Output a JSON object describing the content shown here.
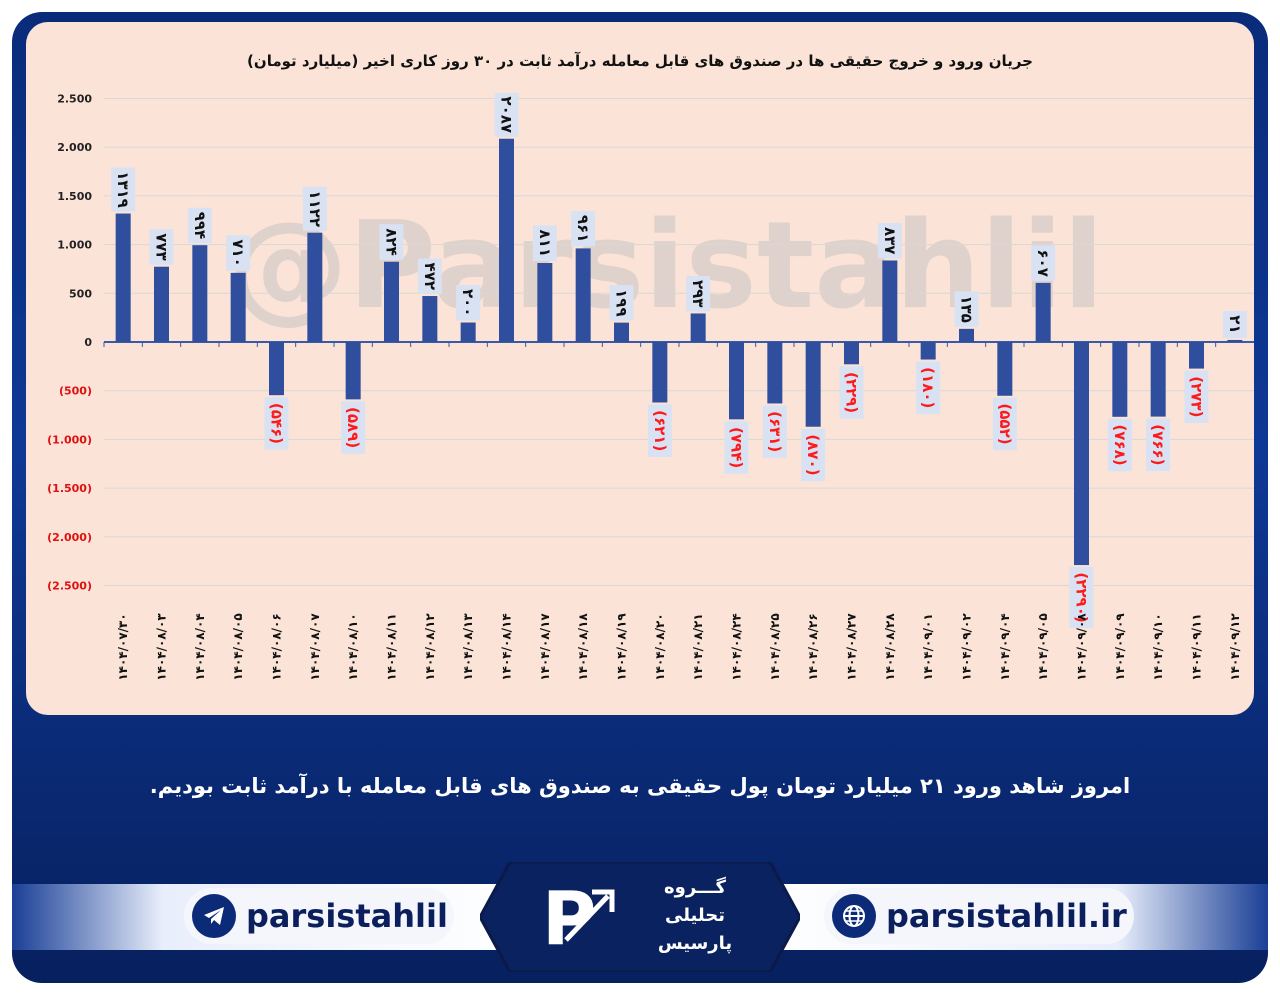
{
  "chart_data": {
    "type": "bar",
    "title": "جریان ورود و خروج حقیقی ها در صندوق های قابل معامله درآمد ثابت در ۳۰ روز کاری اخیر (میلیارد تومان)",
    "categories": [
      "۱۴۰۴/۰۷/۳۰",
      "۱۴۰۴/۰۸/۰۳",
      "۱۴۰۴/۰۸/۰۴",
      "۱۴۰۴/۰۸/۰۵",
      "۱۴۰۴/۰۸/۰۶",
      "۱۴۰۴/۰۸/۰۷",
      "۱۴۰۴/۰۸/۱۰",
      "۱۴۰۴/۰۸/۱۱",
      "۱۴۰۴/۰۸/۱۲",
      "۱۴۰۴/۰۸/۱۳",
      "۱۴۰۴/۰۸/۱۴",
      "۱۴۰۴/۰۸/۱۷",
      "۱۴۰۴/۰۸/۱۸",
      "۱۴۰۴/۰۸/۱۹",
      "۱۴۰۴/۰۸/۲۰",
      "۱۴۰۴/۰۸/۲۱",
      "۱۴۰۴/۰۸/۲۴",
      "۱۴۰۴/۰۸/۲۵",
      "۱۴۰۴/۰۸/۲۶",
      "۱۴۰۴/۰۸/۲۷",
      "۱۴۰۴/۰۸/۲۸",
      "۱۴۰۴/۰۹/۰۱",
      "۱۴۰۴/۰۹/۰۲",
      "۱۴۰۴/۰۹/۰۴",
      "۱۴۰۴/۰۹/۰۵",
      "۱۴۰۴/۰۹/۰۸",
      "۱۴۰۴/۰۹/۰۹",
      "۱۴۰۴/۰۹/۱۰",
      "۱۴۰۴/۰۹/۱۱",
      "۱۴۰۴/۰۹/۱۲"
    ],
    "values": [
      1319,
      773,
      994,
      710,
      -546,
      1122,
      -589,
      824,
      472,
      200,
      2087,
      811,
      961,
      199,
      -621,
      293,
      -794,
      -631,
      -870,
      -229,
      837,
      -180,
      135,
      -552,
      607,
      -2290,
      -768,
      -766,
      -273,
      21
    ],
    "data_labels": [
      "۱۳۱۹",
      "۷۷۳",
      "۹۹۴",
      "۷۱۰",
      "(۵۴۶)",
      "۱۱۲۲",
      "(۵۸۹)",
      "۸۲۴",
      "۴۷۲",
      "۲۰۰",
      "۲۰۸۷",
      "۸۱۱",
      "۹۶۱",
      "۱۹۹",
      "(۶۲۱)",
      "۲۹۳",
      "(۷۹۴)",
      "(۶۳۱)",
      "(۸۷۰)",
      "(۲۲۹)",
      "۸۳۷",
      "(۱۸۰)",
      "۱۳۵",
      "(۵۵۲)",
      "۶۰۷",
      "(۲۲۹۰)",
      "(۷۶۸)",
      "(۷۶۶)",
      "(۲۷۳)",
      "۲۱"
    ],
    "ylim": [
      -2500,
      2500
    ],
    "y_ticks": [
      2500,
      2000,
      1500,
      1000,
      500,
      0,
      -500,
      -1000,
      -1500,
      -2000,
      -2500
    ],
    "y_tick_labels": [
      "2.500",
      "2.000",
      "1.500",
      "1.000",
      "500",
      "0",
      "(500)",
      "(1.000)",
      "(1.500)",
      "(2.000)",
      "(2.500)"
    ],
    "grid": true,
    "colors": {
      "bar": "#2f4f9e",
      "negative_label": "#ff1a1a",
      "positive_label": "#111111",
      "label_box": "#d9e2f3"
    },
    "watermark": "@Parsistahlil"
  },
  "caption": "امروز شاهد ورود ۲۱ میلیارد تومان پول حقیقی به صندوق های قابل معامله با درآمد ثابت بودیم.",
  "footer": {
    "telegram_handle": "parsistahlil",
    "website": "parsistahlil.ir",
    "logo_lines": [
      "گـــروه",
      "تحلیلی",
      "پارسیس"
    ],
    "icons": {
      "telegram": "telegram-icon",
      "web": "globe-icon"
    }
  }
}
